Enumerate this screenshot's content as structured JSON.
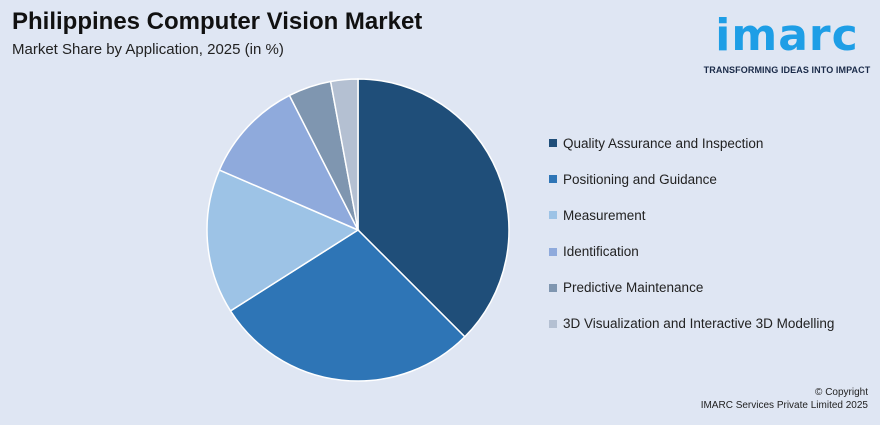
{
  "header": {
    "title": "Philippines Computer Vision Market",
    "subtitle": "Market Share by Application, 2025 (in %)"
  },
  "logo": {
    "wordmark": "imarc",
    "tagline": "TRANSFORMING IDEAS INTO IMPACT",
    "color": "#1e9ee6"
  },
  "chart_data": {
    "type": "pie",
    "title": "Philippines Computer Vision Market",
    "subtitle": "Market Share by Application, 2025 (in %)",
    "categories": [
      "Quality Assurance and Inspection",
      "Positioning and Guidance",
      "Measurement",
      "Identification",
      "Predictive Maintenance",
      "3D Visualization and Interactive 3D Modelling"
    ],
    "values": [
      37.5,
      28.5,
      15.5,
      11.0,
      4.6,
      2.9
    ],
    "colors": [
      "#1f4e79",
      "#2e75b6",
      "#9dc3e6",
      "#8faadc",
      "#7f96b0",
      "#b4c0d2"
    ],
    "legend_position": "right",
    "start_angle": "12 o'clock, clockwise"
  },
  "footer": {
    "copyright_line1": "© Copyright",
    "copyright_line2": "IMARC Services Private Limited 2025"
  }
}
